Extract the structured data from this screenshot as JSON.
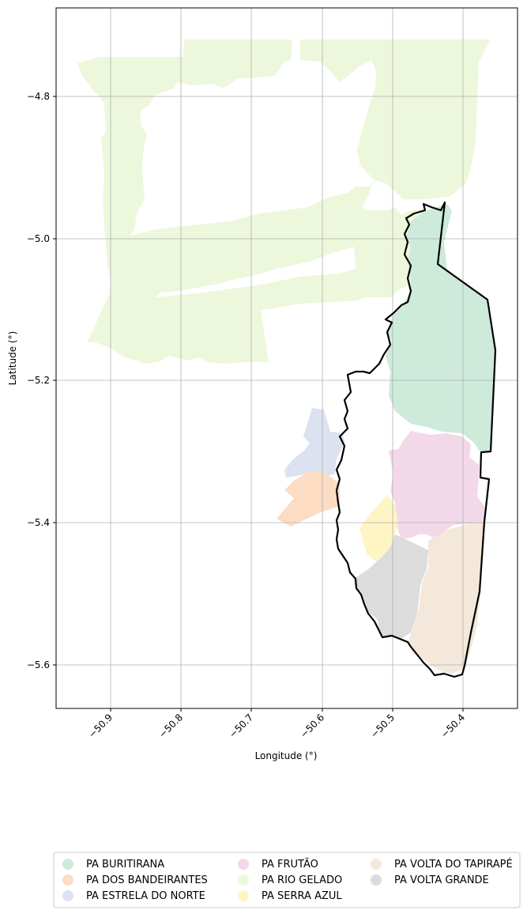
{
  "map": {
    "x_label": "Longitude (°)",
    "y_label": "Latitude (°)",
    "x_ticks": [
      "−50.9",
      "−50.8",
      "−50.7",
      "−50.6",
      "−50.5",
      "−50.4"
    ],
    "y_ticks": [
      "−4.8",
      "−5.0",
      "−5.2",
      "−5.4",
      "−5.6"
    ],
    "grid": true,
    "legend_position": "bottom",
    "boundary_color": "#000000"
  },
  "legend": {
    "items": [
      {
        "label": "PA BURITIRANA",
        "color": "#cdeadb"
      },
      {
        "label": "PA DOS BANDEIRANTES",
        "color": "#fddcc4"
      },
      {
        "label": "PA ESTRELA DO NORTE",
        "color": "#dde2f0"
      },
      {
        "label": "PA FRUTÃO",
        "color": "#f3d8ea"
      },
      {
        "label": "PA RIO GELADO",
        "color": "#edf7db"
      },
      {
        "label": "PA SERRA AZUL",
        "color": "#fff4c4"
      },
      {
        "label": "PA VOLTA DO TAPIRAPÉ",
        "color": "#f3e8d9"
      },
      {
        "label": "PA VOLTA GRANDE",
        "color": "#dcdcdc"
      }
    ]
  }
}
